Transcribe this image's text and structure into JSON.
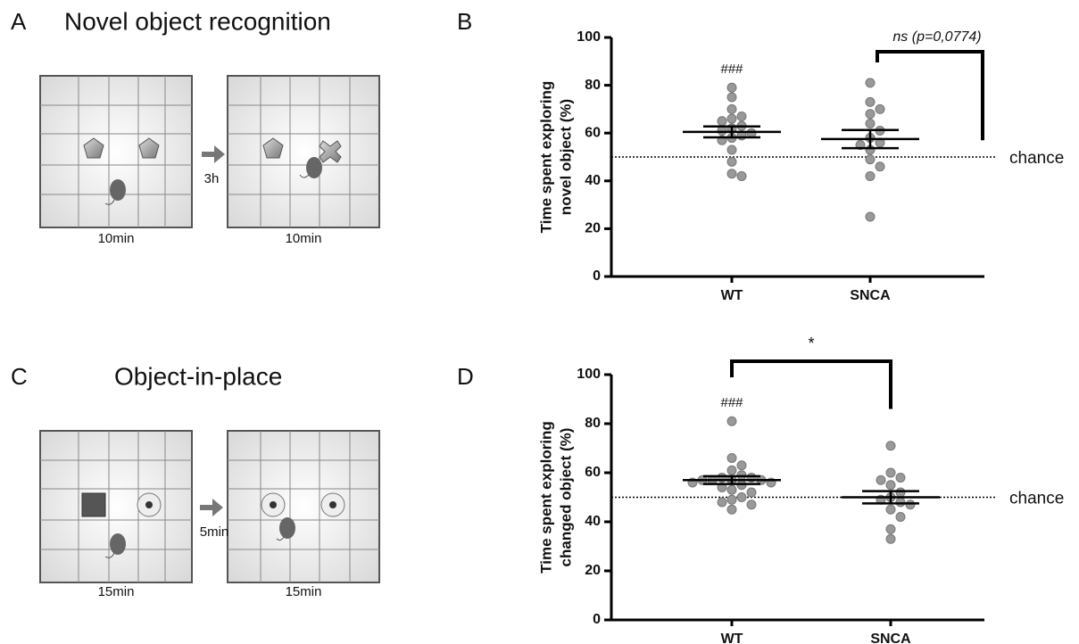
{
  "panel_a": {
    "letter": "A",
    "title": "Novel object recognition",
    "durations": [
      "10min",
      "10min"
    ],
    "interval": "3h"
  },
  "panel_c": {
    "letter": "C",
    "title": "Object-in-place",
    "durations": [
      "15min",
      "15min"
    ],
    "interval": "5min"
  },
  "chart_data": [
    {
      "type": "dot",
      "panel_label": "B",
      "ylabel": [
        "Time spent exploring",
        "novel object (%)"
      ],
      "categories": [
        "WT",
        "SNCA"
      ],
      "values": [
        [
          79,
          75,
          70,
          67,
          66,
          65,
          63,
          62,
          61,
          60,
          59,
          58,
          57,
          53,
          48,
          43,
          42
        ],
        [
          81,
          73,
          70,
          68,
          64,
          61,
          58,
          56,
          55,
          53,
          49,
          46,
          42,
          25
        ]
      ],
      "means": [
        60.5,
        57.5
      ],
      "errors": [
        2.3,
        3.8
      ],
      "color": "#999999",
      "group_annotations": [
        "###",
        null
      ],
      "comparison": {
        "label": "ns (p=0,0774)"
      },
      "reference_line": {
        "value": 50,
        "label": "chance"
      },
      "ylim": [
        0,
        100
      ],
      "yticks": [
        0,
        20,
        40,
        60,
        80,
        100
      ]
    },
    {
      "type": "dot",
      "panel_label": "D",
      "ylabel": [
        "Time spent exploring",
        "changed object (%)"
      ],
      "categories": [
        "WT",
        "SNCA"
      ],
      "values": [
        [
          81,
          66,
          63,
          61,
          59,
          58,
          58,
          57,
          57,
          57,
          57,
          56,
          56,
          55,
          54,
          53,
          52,
          50,
          49,
          48,
          47,
          45
        ],
        [
          71,
          60,
          58,
          57,
          55,
          52,
          50,
          49,
          48,
          47,
          45,
          42,
          37,
          33
        ]
      ],
      "means": [
        57,
        50
      ],
      "errors": [
        1.6,
        2.5
      ],
      "color": "#999999",
      "group_annotations": [
        "###",
        null
      ],
      "comparison": {
        "label": "*"
      },
      "reference_line": {
        "value": 50,
        "label": "chance"
      },
      "ylim": [
        0,
        100
      ],
      "yticks": [
        0,
        20,
        40,
        60,
        80,
        100
      ]
    }
  ]
}
